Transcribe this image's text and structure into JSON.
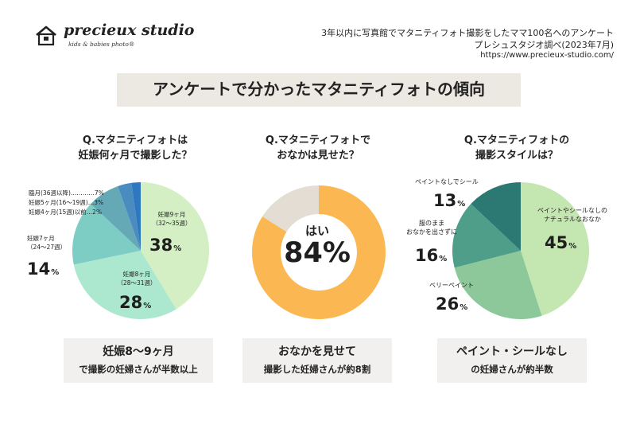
{
  "logo": {
    "title": "precieux studio",
    "subtitle": "kids & babies photo®",
    "house_mark_text": "precieux studio"
  },
  "header": {
    "line1": "3年以内に写真館でマタニティフォト撮影をしたママ100名へのアンケート",
    "line2": "プレシュスタジオ調べ(2023年7月)",
    "url": "https://www.precieux-studio.com/"
  },
  "banner": {
    "title": "アンケートで分かったマタニティフォトの傾向"
  },
  "colors": {
    "banner_bg": "#ece8e2",
    "summary_bg": "#f1f0ef",
    "donut_yes": "#fbb852",
    "donut_no": "#e3ddd3"
  },
  "panels": [
    {
      "question_lines": [
        "Q.マタニティフォトは",
        "妊娠何ヶ月で撮影した？"
      ],
      "labels": {
        "m9": [
          "妊娠9ヶ月",
          "（32～35週）"
        ],
        "m8": [
          "妊娠8ヶ月",
          "（28～31週）"
        ],
        "m7": [
          "妊娠7ヶ月",
          "（24～27週）"
        ],
        "small": [
          "臨月(36週以降)…………7%",
          "妊娠5ヶ月(16～19週)…3%",
          "妊娠4ヶ月(15週)以前…2%"
        ]
      },
      "summary": [
        "妊娠8～9ヶ月",
        "で撮影の妊婦さんが半数以上"
      ]
    },
    {
      "question_lines": [
        "Q.マタニティフォトで",
        "おなかは見せた？"
      ],
      "center_label": "はい",
      "center_value": "84%",
      "summary": [
        "おなかを見せて",
        "撮影した妊婦さんが約8割"
      ]
    },
    {
      "question_lines": [
        "Q.マタニティフォトの",
        "撮影スタイルは？"
      ],
      "labels": {
        "natural": [
          "ペイントやシールなしの",
          "ナチュラルなおなか"
        ],
        "clothes": [
          "服のまま",
          "おなかを出さずに"
        ],
        "paint_none": [
          "ペイントなしでシール"
        ],
        "belly_paint": [
          "ベリーペイント"
        ]
      },
      "summary": [
        "ペイント・シールなし",
        "の妊婦さんが約半数"
      ]
    }
  ],
  "chart_data": [
    {
      "type": "pie",
      "title": "Q.マタニティフォトは妊娠何ヶ月で撮影した？",
      "slices": [
        {
          "label": "妊娠9ヶ月（32～35週）",
          "value": 38,
          "display": "38",
          "color": "#d3efc3"
        },
        {
          "label": "妊娠8ヶ月（28～31週）",
          "value": 28,
          "display": "28",
          "color": "#ace8cf"
        },
        {
          "label": "妊娠7ヶ月（24～27週）",
          "value": 14,
          "display": "14",
          "color": "#7ecdc4"
        },
        {
          "label": "臨月(36週以降)",
          "value": 7,
          "color": "#66a9b6"
        },
        {
          "label": "妊娠5ヶ月(16～19週)",
          "value": 3,
          "color": "#4b8cc0"
        },
        {
          "label": "妊娠4ヶ月(15週)以前",
          "value": 2,
          "color": "#2f78bf"
        }
      ],
      "unit": "%"
    },
    {
      "type": "pie",
      "title": "Q.マタニティフォトでおなかは見せた？",
      "slices": [
        {
          "label": "はい",
          "value": 84,
          "color": "#fbb852"
        },
        {
          "label": "",
          "value": 16,
          "color": "#e3ddd3"
        }
      ],
      "unit": "%"
    },
    {
      "type": "pie",
      "title": "Q.マタニティフォトの撮影スタイルは？",
      "slices": [
        {
          "label": "ペイントやシールなしのナチュラルなおなか",
          "value": 45,
          "display": "45",
          "color": "#c4e6b0"
        },
        {
          "label": "ベリーペイント",
          "value": 26,
          "display": "26",
          "color": "#8cc89a"
        },
        {
          "label": "服のままおなかを出さずに",
          "value": 16,
          "display": "16",
          "color": "#4f9e89"
        },
        {
          "label": "ペイントなしでシール",
          "value": 13,
          "display": "13",
          "color": "#2c7873"
        }
      ],
      "unit": "%"
    }
  ]
}
